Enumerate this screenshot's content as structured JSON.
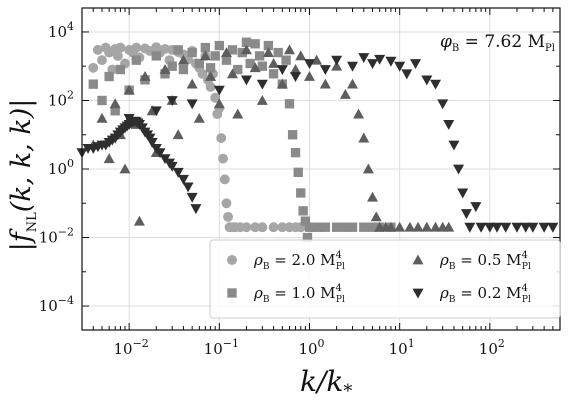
{
  "chart_data": {
    "type": "scatter",
    "xlabel": "k/k_*",
    "ylabel": "|f_NL(k,k,k)|",
    "xscale": "log",
    "yscale": "log",
    "xlim": [
      0.003,
      600
    ],
    "ylim": [
      2e-05,
      50000
    ],
    "grid": true,
    "legend_position": "lower-right",
    "x_ticks": [
      "10^-2",
      "10^-1",
      "10^0",
      "10^1",
      "10^2"
    ],
    "y_ticks": [
      "10^-4",
      "10^-2",
      "10^0",
      "10^2",
      "10^4"
    ],
    "annotation": "φ_B = 7.62 M_Pl",
    "series": [
      {
        "name": "ρ_B = 2.0 M_Pl^4",
        "marker": "circle",
        "color": "#a6a6a6",
        "points": [
          [
            0.004,
            900
          ],
          [
            0.0045,
            3000
          ],
          [
            0.005,
            1500
          ],
          [
            0.0055,
            3500
          ],
          [
            0.006,
            2500
          ],
          [
            0.0065,
            800
          ],
          [
            0.007,
            3200
          ],
          [
            0.0075,
            2000
          ],
          [
            0.008,
            3500
          ],
          [
            0.009,
            1200
          ],
          [
            0.01,
            3000
          ],
          [
            0.011,
            2500
          ],
          [
            0.012,
            3500
          ],
          [
            0.013,
            1800
          ],
          [
            0.015,
            3300
          ],
          [
            0.017,
            2800
          ],
          [
            0.02,
            3600
          ],
          [
            0.022,
            2500
          ],
          [
            0.025,
            3200
          ],
          [
            0.028,
            1500
          ],
          [
            0.03,
            3000
          ],
          [
            0.035,
            2600
          ],
          [
            0.04,
            2200
          ],
          [
            0.045,
            1600
          ],
          [
            0.05,
            2800
          ],
          [
            0.055,
            1200
          ],
          [
            0.06,
            900
          ],
          [
            0.065,
            600
          ],
          [
            0.07,
            2000
          ],
          [
            0.075,
            400
          ],
          [
            0.08,
            250
          ],
          [
            0.085,
            600
          ],
          [
            0.09,
            120
          ],
          [
            0.095,
            40
          ],
          [
            0.1,
            60
          ],
          [
            0.105,
            8
          ],
          [
            0.11,
            2
          ],
          [
            0.115,
            0.5
          ],
          [
            0.12,
            0.1
          ],
          [
            0.125,
            0.04
          ],
          [
            0.13,
            0.02
          ],
          [
            0.14,
            0.02
          ],
          [
            0.15,
            0.02
          ],
          [
            0.17,
            0.02
          ],
          [
            0.2,
            0.02
          ],
          [
            0.25,
            0.02
          ],
          [
            0.3,
            0.02
          ],
          [
            0.4,
            0.02
          ],
          [
            0.5,
            0.02
          ],
          [
            0.6,
            0.02
          ],
          [
            0.7,
            0.02
          ],
          [
            0.8,
            0.02
          ]
        ]
      },
      {
        "name": "ρ_B = 1.0 M_Pl^4",
        "marker": "square",
        "color": "#8a8a8a",
        "points": [
          [
            0.004,
            300
          ],
          [
            0.005,
            100
          ],
          [
            0.006,
            500
          ],
          [
            0.007,
            50
          ],
          [
            0.008,
            800
          ],
          [
            0.01,
            200
          ],
          [
            0.012,
            1500
          ],
          [
            0.015,
            400
          ],
          [
            0.02,
            2000
          ],
          [
            0.025,
            600
          ],
          [
            0.03,
            1000
          ],
          [
            0.035,
            3000
          ],
          [
            0.04,
            800
          ],
          [
            0.05,
            2500
          ],
          [
            0.06,
            1200
          ],
          [
            0.07,
            3500
          ],
          [
            0.08,
            900
          ],
          [
            0.09,
            2000
          ],
          [
            0.1,
            4000
          ],
          [
            0.12,
            1500
          ],
          [
            0.14,
            3000
          ],
          [
            0.16,
            800
          ],
          [
            0.18,
            2500
          ],
          [
            0.2,
            5000
          ],
          [
            0.22,
            1200
          ],
          [
            0.25,
            4500
          ],
          [
            0.28,
            2000
          ],
          [
            0.3,
            1000
          ],
          [
            0.35,
            4000
          ],
          [
            0.4,
            600
          ],
          [
            0.45,
            2500
          ],
          [
            0.5,
            300
          ],
          [
            0.55,
            1500
          ],
          [
            0.6,
            80
          ],
          [
            0.65,
            10
          ],
          [
            0.7,
            3
          ],
          [
            0.75,
            0.8
          ],
          [
            0.8,
            0.2
          ],
          [
            0.85,
            0.06
          ],
          [
            0.9,
            0.03
          ],
          [
            0.95,
            0.01
          ],
          [
            1.0,
            0.02
          ],
          [
            1.1,
            0.02
          ],
          [
            1.3,
            0.02
          ],
          [
            1.5,
            0.02
          ],
          [
            2,
            0.02
          ],
          [
            2.5,
            0.02
          ],
          [
            3,
            0.02
          ],
          [
            4,
            0.02
          ],
          [
            5,
            0.02
          ],
          [
            6,
            0.02
          ],
          [
            8,
            0.02
          ]
        ]
      },
      {
        "name": "ρ_B = 0.5 M_Pl^4",
        "marker": "triangle-up",
        "color": "#5e5e5e",
        "points": [
          [
            0.004,
            5
          ],
          [
            0.005,
            30
          ],
          [
            0.006,
            2
          ],
          [
            0.007,
            80
          ],
          [
            0.008,
            10
          ],
          [
            0.009,
            1
          ],
          [
            0.01,
            200
          ],
          [
            0.012,
            20
          ],
          [
            0.013,
            0.03
          ],
          [
            0.015,
            500
          ],
          [
            0.018,
            50
          ],
          [
            0.02,
            3
          ],
          [
            0.025,
            800
          ],
          [
            0.03,
            100
          ],
          [
            0.035,
            10
          ],
          [
            0.04,
            1500
          ],
          [
            0.05,
            300
          ],
          [
            0.06,
            30
          ],
          [
            0.07,
            2000
          ],
          [
            0.08,
            500
          ],
          [
            0.1,
            80
          ],
          [
            0.12,
            2500
          ],
          [
            0.14,
            600
          ],
          [
            0.16,
            40
          ],
          [
            0.2,
            3000
          ],
          [
            0.25,
            900
          ],
          [
            0.3,
            100
          ],
          [
            0.35,
            2500
          ],
          [
            0.4,
            1200
          ],
          [
            0.5,
            300
          ],
          [
            0.6,
            3000
          ],
          [
            0.7,
            800
          ],
          [
            0.8,
            2000
          ],
          [
            1.0,
            500
          ],
          [
            1.2,
            1500
          ],
          [
            1.5,
            300
          ],
          [
            2.0,
            1000
          ],
          [
            2.5,
            150
          ],
          [
            3.0,
            300
          ],
          [
            3.5,
            40
          ],
          [
            4.0,
            8
          ],
          [
            4.5,
            1
          ],
          [
            5.0,
            0.15
          ],
          [
            5.5,
            0.04
          ],
          [
            6.0,
            0.02
          ],
          [
            7,
            0.02
          ],
          [
            8,
            0.02
          ],
          [
            10,
            0.02
          ],
          [
            13,
            0.02
          ],
          [
            16,
            0.02
          ],
          [
            20,
            0.02
          ],
          [
            25,
            0.02
          ],
          [
            30,
            0.02
          ],
          [
            35,
            0.02
          ]
        ]
      },
      {
        "name": "ρ_B = 0.2 M_Pl^4",
        "marker": "triangle-down",
        "color": "#2e2e2e",
        "points": [
          [
            0.003,
            3
          ],
          [
            0.0035,
            4
          ],
          [
            0.004,
            4
          ],
          [
            0.0045,
            4.5
          ],
          [
            0.005,
            5
          ],
          [
            0.0055,
            5
          ],
          [
            0.006,
            6
          ],
          [
            0.0065,
            7
          ],
          [
            0.007,
            8
          ],
          [
            0.0075,
            10
          ],
          [
            0.008,
            12
          ],
          [
            0.0085,
            14
          ],
          [
            0.009,
            16
          ],
          [
            0.0095,
            18
          ],
          [
            0.01,
            20
          ],
          [
            0.0105,
            22
          ],
          [
            0.011,
            24
          ],
          [
            0.0115,
            25
          ],
          [
            0.012,
            24
          ],
          [
            0.0125,
            22
          ],
          [
            0.013,
            20
          ],
          [
            0.014,
            16
          ],
          [
            0.015,
            12
          ],
          [
            0.016,
            10
          ],
          [
            0.017,
            8
          ],
          [
            0.018,
            6
          ],
          [
            0.02,
            4
          ],
          [
            0.022,
            3
          ],
          [
            0.025,
            2
          ],
          [
            0.028,
            1.5
          ],
          [
            0.03,
            1.2
          ],
          [
            0.035,
            0.8
          ],
          [
            0.04,
            0.5
          ],
          [
            0.045,
            0.3
          ],
          [
            0.05,
            0.15
          ],
          [
            0.055,
            0.07
          ],
          [
            0.01,
            30
          ],
          [
            0.02,
            50
          ],
          [
            0.03,
            100
          ],
          [
            0.05,
            80
          ],
          [
            0.1,
            200
          ],
          [
            0.2,
            400
          ],
          [
            0.3,
            300
          ],
          [
            0.5,
            800
          ],
          [
            0.7,
            500
          ],
          [
            1.0,
            1200
          ],
          [
            1.5,
            800
          ],
          [
            2.0,
            1500
          ],
          [
            3.0,
            1000
          ],
          [
            4.0,
            1800
          ],
          [
            5.0,
            1200
          ],
          [
            6.0,
            1600
          ],
          [
            8.0,
            1400
          ],
          [
            10,
            1000
          ],
          [
            12,
            600
          ],
          [
            15,
            1200
          ],
          [
            20,
            400
          ],
          [
            25,
            300
          ],
          [
            30,
            80
          ],
          [
            35,
            20
          ],
          [
            40,
            5
          ],
          [
            45,
            1
          ],
          [
            50,
            0.2
          ],
          [
            55,
            0.05
          ],
          [
            60,
            0.02
          ],
          [
            70,
            0.08
          ],
          [
            80,
            0.02
          ],
          [
            100,
            0.02
          ],
          [
            120,
            0.02
          ],
          [
            150,
            0.02
          ],
          [
            200,
            0.02
          ],
          [
            250,
            0.02
          ],
          [
            300,
            0.02
          ],
          [
            400,
            0.02
          ],
          [
            500,
            0.02
          ]
        ]
      }
    ]
  }
}
